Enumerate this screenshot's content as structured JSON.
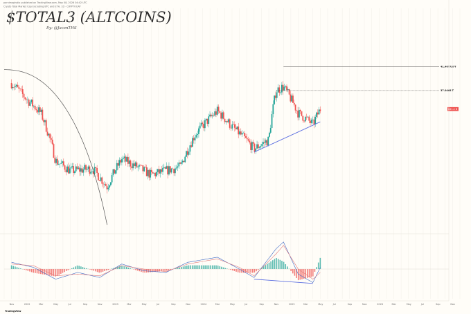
{
  "header": {
    "line1": "parnimapholio published on TradingView.com, May 08, 2026 04:42 UTC",
    "line2": "Crypto Total Market Cap Excluding BTC and ETH, 1D · CRYPTOCAP",
    "title": "$TOTAL3 (ALTCOINS)",
    "subtitle": "By: @JasonTHS"
  },
  "footer": {
    "brand": "TradingView"
  },
  "colors": {
    "up": "#26a69a",
    "down": "#ef5350",
    "trend": "#5b6ee0",
    "macd": "#3a66c4",
    "signal": "#e07a7a",
    "arc": "#555555"
  },
  "chart_data": {
    "type": "candlestick",
    "title": "$TOTAL3 (ALTCOINS)",
    "subtitle": "By: @JasonTHS",
    "unit": "USD",
    "y_scale": "log",
    "x_ticks": [
      "Nov",
      "2022",
      "Mar",
      "May",
      "Jul",
      "Sep",
      "Nov",
      "2023",
      "Mar",
      "May",
      "Jul",
      "Sep",
      "Nov",
      "2024",
      "Mar",
      "May",
      "Jul",
      "Sep",
      "Nov",
      "2025",
      "Mar",
      "May",
      "Jul",
      "Sep",
      "Nov",
      "2026",
      "Mar",
      "May",
      "Jul",
      "Sep",
      "Nov"
    ],
    "price_levels": [
      {
        "label": "41.40T737T",
        "value": 1.4
      },
      {
        "label": "37.0468 T",
        "value": 1.05
      }
    ],
    "current_price": {
      "label": "841.4 B",
      "value": 0.84
    },
    "price_path": {
      "x": [
        "2021-11",
        "2022-01",
        "2022-03",
        "2022-05",
        "2022-07",
        "2022-10",
        "2022-12",
        "2023-02",
        "2023-06",
        "2023-10",
        "2023-12",
        "2024-03",
        "2024-05",
        "2024-08",
        "2024-10",
        "2024-11",
        "2024-12",
        "2025-02",
        "2025-04",
        "2025-05"
      ],
      "y": [
        1.15,
        0.95,
        0.8,
        0.45,
        0.4,
        0.41,
        0.33,
        0.46,
        0.38,
        0.42,
        0.62,
        0.82,
        0.68,
        0.52,
        0.58,
        1.05,
        1.1,
        0.8,
        0.7,
        0.84
      ]
    },
    "annotations": [
      {
        "type": "arc",
        "description": "declining curved resistance from 2021 top to 2022"
      },
      {
        "type": "trendline",
        "description": "rising support line from Aug 2024 low to May 2025"
      },
      {
        "type": "trendline",
        "description": "declining MACD line from Aug 2024 to Apr 2025 (bullish divergence)"
      }
    ],
    "macd": {
      "x": [
        "2021-11",
        "2022-02",
        "2022-05",
        "2022-08",
        "2022-11",
        "2023-02",
        "2023-05",
        "2023-08",
        "2023-11",
        "2024-03",
        "2024-06",
        "2024-08",
        "2024-11",
        "2024-12",
        "2025-02",
        "2025-04",
        "2025-05"
      ],
      "macd": [
        0.04,
        0.01,
        -0.06,
        -0.02,
        -0.05,
        0.03,
        -0.01,
        -0.02,
        0.04,
        0.07,
        0.0,
        -0.05,
        0.12,
        0.16,
        -0.03,
        -0.08,
        0.01
      ],
      "signal": [
        0.03,
        0.02,
        -0.04,
        -0.03,
        -0.04,
        0.02,
        0.0,
        -0.015,
        0.03,
        0.06,
        0.01,
        -0.04,
        0.09,
        0.14,
        0.0,
        -0.06,
        -0.02
      ]
    }
  }
}
